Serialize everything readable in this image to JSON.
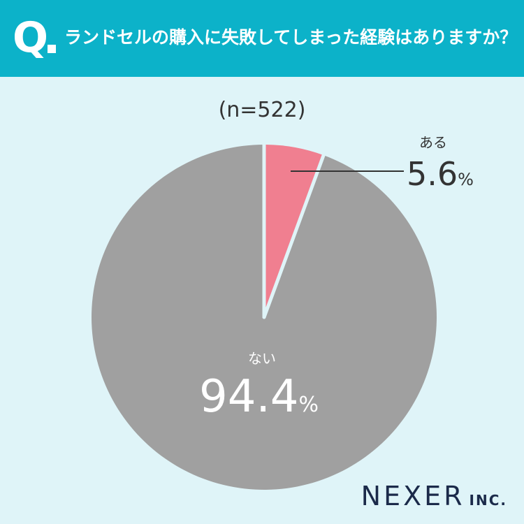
{
  "header": {
    "q_mark": "Q",
    "question": "ランドセルの購入に失敗してしまった経験はありますか？"
  },
  "sample": "(n=522)",
  "colors": {
    "header_bg": "#0cb2c9",
    "page_bg": "#dff4f8",
    "yes": "#f07f90",
    "no": "#a0a0a0",
    "divider": "#dff4f8"
  },
  "chart_data": {
    "type": "pie",
    "slices": [
      {
        "label": "ある",
        "value": 5.6,
        "display": "5.6",
        "unit": "%"
      },
      {
        "label": "ない",
        "value": 94.4,
        "display": "94.4",
        "unit": "%"
      }
    ]
  },
  "brand": {
    "name": "NEXER",
    "suffix": "INC."
  }
}
